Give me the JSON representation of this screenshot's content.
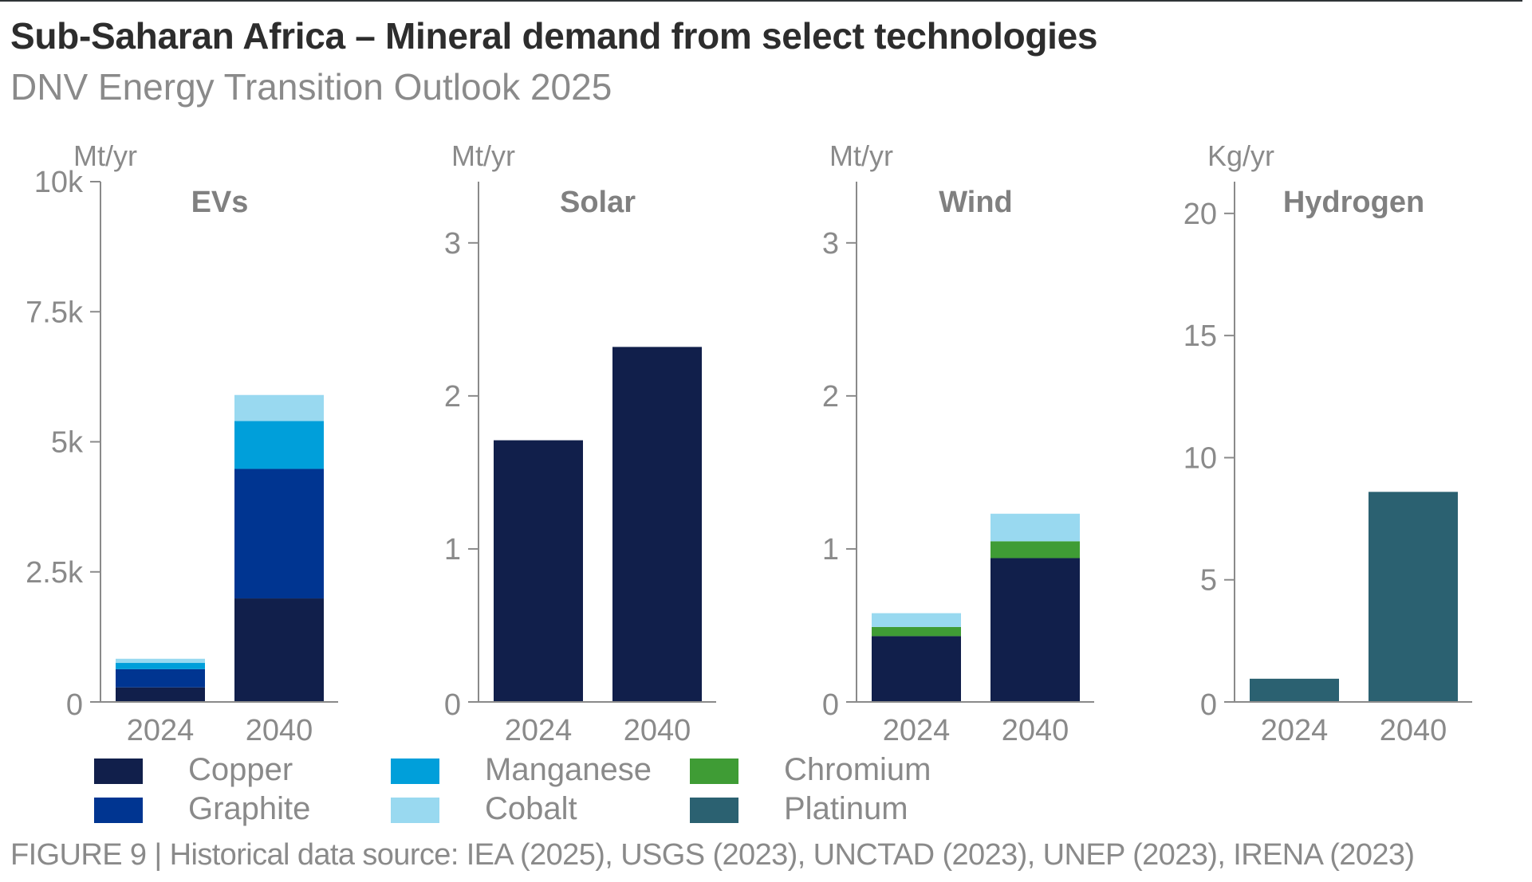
{
  "header": {
    "title": "Sub-Saharan Africa – Mineral demand from select technologies",
    "subtitle": "DNV Energy Transition Outlook 2025"
  },
  "footnote": "FIGURE 9 | Historical data source: IEA (2025), USGS (2023), UNCTAD (2023), UNEP (2023), IRENA (2023)",
  "legend": [
    {
      "key": "copper",
      "label": "Copper",
      "color": "#111f4b"
    },
    {
      "key": "graphite",
      "label": "Graphite",
      "color": "#003591"
    },
    {
      "key": "manganese",
      "label": "Manganese",
      "color": "#009fda"
    },
    {
      "key": "cobalt",
      "label": "Cobalt",
      "color": "#99d9f0"
    },
    {
      "key": "chromium",
      "label": "Chromium",
      "color": "#3f9c35"
    },
    {
      "key": "platinum",
      "label": "Platinum",
      "color": "#2b6171"
    }
  ],
  "chart_data": [
    {
      "type": "bar",
      "stacked": true,
      "title": "EVs",
      "unit": "Mt/yr",
      "categories": [
        "2024",
        "2040"
      ],
      "ylim": [
        0,
        10000
      ],
      "yticks": [
        0,
        2500,
        5000,
        7500,
        10000
      ],
      "ytick_labels": [
        "0",
        "2.5k",
        "5k",
        "7.5k",
        "10k"
      ],
      "series": [
        {
          "name": "Copper",
          "key": "copper",
          "values": [
            280,
            1990
          ]
        },
        {
          "name": "Graphite",
          "key": "graphite",
          "values": [
            350,
            2490
          ]
        },
        {
          "name": "Manganese",
          "key": "manganese",
          "values": [
            120,
            920
          ]
        },
        {
          "name": "Cobalt",
          "key": "cobalt",
          "values": [
            80,
            500
          ]
        }
      ]
    },
    {
      "type": "bar",
      "stacked": true,
      "title": "Solar",
      "unit": "Mt/yr",
      "categories": [
        "2024",
        "2040"
      ],
      "ylim": [
        0,
        3.4
      ],
      "yticks": [
        0,
        1,
        2,
        3
      ],
      "ytick_labels": [
        "0",
        "1",
        "2",
        "3"
      ],
      "series": [
        {
          "name": "Copper",
          "key": "copper",
          "values": [
            1.71,
            2.32
          ]
        }
      ]
    },
    {
      "type": "bar",
      "stacked": true,
      "title": "Wind",
      "unit": "Mt/yr",
      "categories": [
        "2024",
        "2040"
      ],
      "ylim": [
        0,
        3.4
      ],
      "yticks": [
        0,
        1,
        2,
        3
      ],
      "ytick_labels": [
        "0",
        "1",
        "2",
        "3"
      ],
      "series": [
        {
          "name": "Copper",
          "key": "copper",
          "values": [
            0.43,
            0.94
          ]
        },
        {
          "name": "Chromium",
          "key": "chromium",
          "values": [
            0.06,
            0.11
          ]
        },
        {
          "name": "Cobalt",
          "key": "cobalt",
          "values": [
            0.09,
            0.18
          ]
        }
      ]
    },
    {
      "type": "bar",
      "stacked": true,
      "title": "Hydrogen",
      "unit": "Kg/yr",
      "categories": [
        "2024",
        "2040"
      ],
      "ylim": [
        0,
        21.3
      ],
      "yticks": [
        0,
        5,
        10,
        15,
        20
      ],
      "ytick_labels": [
        "0",
        "5",
        "10",
        "15",
        "20"
      ],
      "series": [
        {
          "name": "Platinum",
          "key": "platinum",
          "values": [
            0.95,
            8.6
          ]
        }
      ]
    }
  ]
}
